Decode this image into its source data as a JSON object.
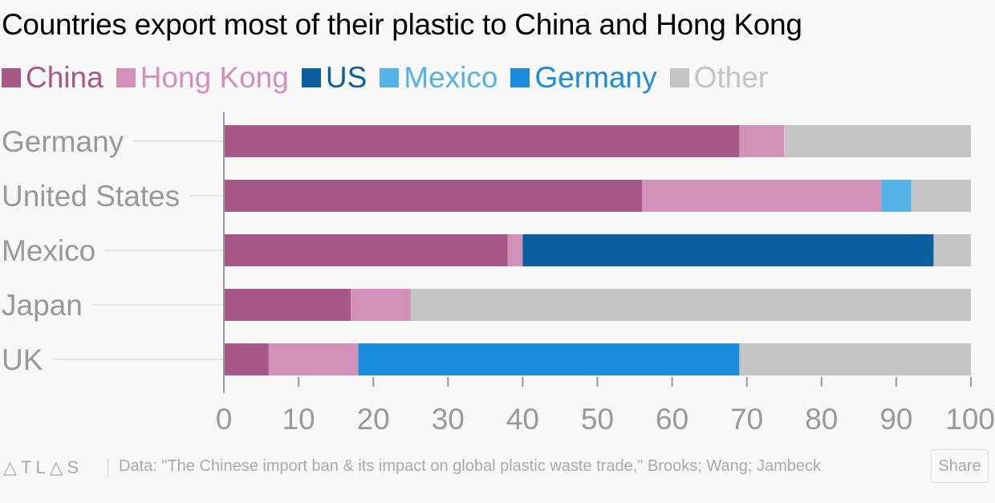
{
  "chart_data": {
    "type": "bar",
    "orientation": "horizontal",
    "stacked": true,
    "title": "Countries export most of their plastic to China and Hong Kong",
    "categories": [
      "Germany",
      "United States",
      "Mexico",
      "Japan",
      "UK"
    ],
    "series": [
      {
        "name": "China",
        "color": "#a85887",
        "values": [
          69,
          56,
          38,
          17,
          6
        ]
      },
      {
        "name": "Hong Kong",
        "color": "#d291b8",
        "values": [
          6,
          32,
          2,
          8,
          12
        ]
      },
      {
        "name": "US",
        "color": "#0b5f9e",
        "values": [
          0,
          0,
          55,
          0,
          0
        ]
      },
      {
        "name": "Mexico",
        "color": "#53b2e6",
        "values": [
          0,
          4,
          0,
          0,
          0
        ]
      },
      {
        "name": "Germany",
        "color": "#1a8cdc",
        "values": [
          0,
          0,
          0,
          0,
          51
        ]
      },
      {
        "name": "Other",
        "color": "#c4c4c4",
        "values": [
          25,
          8,
          5,
          75,
          31
        ]
      }
    ],
    "xlim": [
      0,
      100
    ],
    "xticks": [
      0,
      10,
      20,
      30,
      40,
      50,
      60,
      70,
      80,
      90,
      100
    ],
    "legend_position": "top",
    "grid": false
  },
  "footer": {
    "logo": "ATLAS",
    "source": "Data:  \"The Chinese import ban & its impact on global plastic waste trade,\" Brooks; Wang; Jambeck",
    "share_label": "Share"
  }
}
